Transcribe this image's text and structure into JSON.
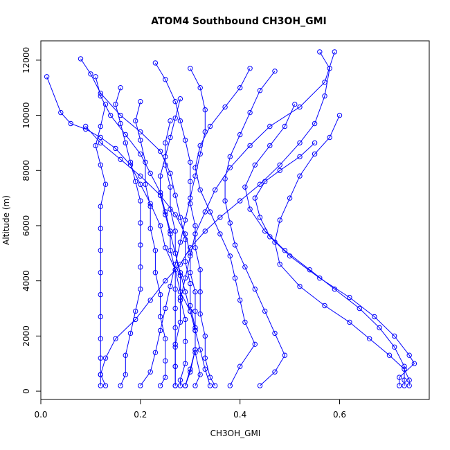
{
  "chart_data": {
    "type": "line",
    "title": "ATOM4 Southbound CH3OH_GMI",
    "xlabel": "CH3OH_GMI",
    "ylabel": "Altitude (m)",
    "xlim": [
      0,
      0.78
    ],
    "ylim": [
      -300,
      12700
    ],
    "x_ticks": [
      0.0,
      0.2,
      0.4,
      0.6
    ],
    "x_tick_labels": [
      "0.0",
      "0.2",
      "0.4",
      "0.6"
    ],
    "y_ticks": [
      0,
      2000,
      4000,
      6000,
      8000,
      10000,
      12000
    ],
    "y_tick_labels": [
      "0",
      "2000",
      "4000",
      "6000",
      "8000",
      "10000",
      "12000"
    ],
    "marker": "open-circle",
    "grid": false,
    "legend": "none",
    "colors": {
      "series": "#0000ff",
      "frame": "#000000"
    },
    "series": [
      {
        "points": [
          [
            0.012,
            11400
          ],
          [
            0.04,
            10100
          ],
          [
            0.06,
            9700
          ],
          [
            0.09,
            9500
          ],
          [
            0.12,
            9200
          ],
          [
            0.15,
            8800
          ],
          [
            0.18,
            8200
          ],
          [
            0.2,
            7500
          ],
          [
            0.22,
            6800
          ],
          [
            0.24,
            6000
          ],
          [
            0.25,
            5200
          ],
          [
            0.27,
            4400
          ],
          [
            0.28,
            3600
          ],
          [
            0.3,
            2900
          ],
          [
            0.31,
            2200
          ],
          [
            0.31,
            1400
          ],
          [
            0.32,
            600
          ],
          [
            0.31,
            200
          ]
        ]
      },
      {
        "points": [
          [
            0.08,
            12050
          ],
          [
            0.1,
            11500
          ],
          [
            0.12,
            10800
          ],
          [
            0.16,
            10000
          ],
          [
            0.2,
            9400
          ],
          [
            0.24,
            8700
          ],
          [
            0.26,
            7900
          ],
          [
            0.27,
            7100
          ],
          [
            0.28,
            6300
          ],
          [
            0.29,
            5500
          ],
          [
            0.29,
            4700
          ],
          [
            0.3,
            3900
          ],
          [
            0.3,
            3100
          ],
          [
            0.31,
            2300
          ],
          [
            0.31,
            1500
          ],
          [
            0.3,
            700
          ],
          [
            0.29,
            200
          ]
        ]
      },
      {
        "points": [
          [
            0.23,
            11900
          ],
          [
            0.25,
            11300
          ],
          [
            0.27,
            10500
          ],
          [
            0.28,
            9800
          ],
          [
            0.29,
            9100
          ],
          [
            0.3,
            8300
          ],
          [
            0.3,
            7600
          ],
          [
            0.3,
            6800
          ],
          [
            0.31,
            6000
          ],
          [
            0.31,
            5200
          ],
          [
            0.32,
            4400
          ],
          [
            0.32,
            3600
          ],
          [
            0.32,
            2800
          ],
          [
            0.33,
            2000
          ],
          [
            0.33,
            1200
          ],
          [
            0.34,
            500
          ],
          [
            0.35,
            200
          ]
        ]
      },
      {
        "points": [
          [
            0.56,
            12300
          ],
          [
            0.58,
            11700
          ],
          [
            0.57,
            10700
          ],
          [
            0.55,
            9700
          ],
          [
            0.52,
            9000
          ],
          [
            0.48,
            8200
          ],
          [
            0.44,
            7500
          ],
          [
            0.4,
            6900
          ],
          [
            0.36,
            6300
          ],
          [
            0.33,
            5800
          ],
          [
            0.3,
            5200
          ],
          [
            0.28,
            4600
          ],
          [
            0.25,
            4000
          ],
          [
            0.22,
            3300
          ],
          [
            0.19,
            2600
          ],
          [
            0.15,
            1900
          ],
          [
            0.13,
            1200
          ],
          [
            0.12,
            600
          ],
          [
            0.12,
            200
          ]
        ]
      },
      {
        "points": [
          [
            0.59,
            12300
          ],
          [
            0.57,
            11200
          ],
          [
            0.52,
            10300
          ],
          [
            0.46,
            9600
          ],
          [
            0.42,
            8900
          ],
          [
            0.38,
            8100
          ],
          [
            0.35,
            7300
          ],
          [
            0.33,
            6500
          ],
          [
            0.31,
            5700
          ],
          [
            0.3,
            4900
          ],
          [
            0.29,
            4100
          ],
          [
            0.28,
            3300
          ],
          [
            0.28,
            2500
          ],
          [
            0.27,
            1700
          ],
          [
            0.27,
            900
          ],
          [
            0.27,
            200
          ]
        ]
      },
      {
        "points": [
          [
            0.6,
            10000
          ],
          [
            0.58,
            9200
          ],
          [
            0.55,
            8600
          ],
          [
            0.52,
            7800
          ],
          [
            0.5,
            7000
          ],
          [
            0.48,
            6200
          ],
          [
            0.47,
            5400
          ],
          [
            0.48,
            4600
          ],
          [
            0.52,
            3800
          ],
          [
            0.57,
            3100
          ],
          [
            0.62,
            2500
          ],
          [
            0.66,
            1900
          ],
          [
            0.7,
            1300
          ],
          [
            0.73,
            800
          ],
          [
            0.74,
            400
          ],
          [
            0.74,
            200
          ]
        ]
      },
      {
        "points": [
          [
            0.51,
            10400
          ],
          [
            0.49,
            9600
          ],
          [
            0.46,
            8900
          ],
          [
            0.43,
            8200
          ],
          [
            0.41,
            7400
          ],
          [
            0.42,
            6600
          ],
          [
            0.45,
            5800
          ],
          [
            0.49,
            5100
          ],
          [
            0.54,
            4400
          ],
          [
            0.59,
            3700
          ],
          [
            0.64,
            3000
          ],
          [
            0.68,
            2300
          ],
          [
            0.71,
            1600
          ],
          [
            0.73,
            900
          ],
          [
            0.73,
            400
          ],
          [
            0.73,
            200
          ]
        ]
      },
      {
        "points": [
          [
            0.55,
            9000
          ],
          [
            0.52,
            8500
          ],
          [
            0.48,
            8000
          ],
          [
            0.45,
            7600
          ],
          [
            0.43,
            7000
          ],
          [
            0.44,
            6300
          ],
          [
            0.46,
            5600
          ],
          [
            0.5,
            4900
          ],
          [
            0.56,
            4100
          ],
          [
            0.62,
            3400
          ],
          [
            0.67,
            2700
          ],
          [
            0.71,
            2000
          ],
          [
            0.74,
            1300
          ],
          [
            0.75,
            1000
          ],
          [
            0.72,
            500
          ],
          [
            0.72,
            200
          ]
        ]
      },
      {
        "points": [
          [
            0.13,
            10400
          ],
          [
            0.12,
            9600
          ],
          [
            0.11,
            8900
          ],
          [
            0.12,
            8200
          ],
          [
            0.13,
            7500
          ],
          [
            0.12,
            6700
          ],
          [
            0.12,
            5900
          ],
          [
            0.12,
            5100
          ],
          [
            0.12,
            4300
          ],
          [
            0.12,
            3500
          ],
          [
            0.12,
            2700
          ],
          [
            0.12,
            1900
          ],
          [
            0.12,
            1200
          ],
          [
            0.12,
            600
          ],
          [
            0.13,
            200
          ]
        ]
      },
      {
        "points": [
          [
            0.2,
            10500
          ],
          [
            0.19,
            9800
          ],
          [
            0.2,
            9100
          ],
          [
            0.21,
            8300
          ],
          [
            0.21,
            7500
          ],
          [
            0.22,
            6700
          ],
          [
            0.22,
            5900
          ],
          [
            0.23,
            5100
          ],
          [
            0.23,
            4300
          ],
          [
            0.24,
            3500
          ],
          [
            0.24,
            2700
          ],
          [
            0.25,
            1900
          ],
          [
            0.25,
            1100
          ],
          [
            0.25,
            500
          ],
          [
            0.24,
            200
          ]
        ]
      },
      {
        "points": [
          [
            0.26,
            9800
          ],
          [
            0.25,
            9000
          ],
          [
            0.25,
            8200
          ],
          [
            0.26,
            7400
          ],
          [
            0.26,
            6600
          ],
          [
            0.27,
            5800
          ],
          [
            0.27,
            5000
          ],
          [
            0.28,
            4200
          ],
          [
            0.28,
            3400
          ],
          [
            0.29,
            2600
          ],
          [
            0.29,
            1800
          ],
          [
            0.29,
            1000
          ],
          [
            0.28,
            400
          ],
          [
            0.28,
            200
          ]
        ]
      },
      {
        "points": [
          [
            0.42,
            11700
          ],
          [
            0.4,
            11000
          ],
          [
            0.37,
            10300
          ],
          [
            0.34,
            9600
          ],
          [
            0.32,
            8900
          ],
          [
            0.31,
            8100
          ],
          [
            0.32,
            7300
          ],
          [
            0.34,
            6500
          ],
          [
            0.36,
            5700
          ],
          [
            0.38,
            4900
          ],
          [
            0.39,
            4100
          ],
          [
            0.4,
            3300
          ],
          [
            0.41,
            2500
          ],
          [
            0.43,
            1700
          ],
          [
            0.4,
            900
          ],
          [
            0.38,
            200
          ]
        ]
      },
      {
        "points": [
          [
            0.47,
            11600
          ],
          [
            0.44,
            10900
          ],
          [
            0.42,
            10100
          ],
          [
            0.4,
            9300
          ],
          [
            0.38,
            8500
          ],
          [
            0.37,
            7700
          ],
          [
            0.37,
            6900
          ],
          [
            0.38,
            6100
          ],
          [
            0.39,
            5300
          ],
          [
            0.41,
            4500
          ],
          [
            0.43,
            3700
          ],
          [
            0.45,
            2900
          ],
          [
            0.47,
            2100
          ],
          [
            0.49,
            1300
          ],
          [
            0.47,
            700
          ],
          [
            0.44,
            200
          ]
        ]
      },
      {
        "points": [
          [
            0.3,
            11700
          ],
          [
            0.32,
            11000
          ],
          [
            0.33,
            10200
          ],
          [
            0.33,
            9400
          ],
          [
            0.32,
            8600
          ],
          [
            0.31,
            7800
          ],
          [
            0.3,
            7000
          ],
          [
            0.29,
            6200
          ],
          [
            0.28,
            5400
          ],
          [
            0.27,
            4600
          ],
          [
            0.26,
            3800
          ],
          [
            0.25,
            3000
          ],
          [
            0.24,
            2200
          ],
          [
            0.23,
            1400
          ],
          [
            0.22,
            700
          ],
          [
            0.2,
            200
          ]
        ]
      },
      {
        "points": [
          [
            0.16,
            11000
          ],
          [
            0.15,
            10400
          ],
          [
            0.16,
            9700
          ],
          [
            0.17,
            9000
          ],
          [
            0.18,
            8300
          ],
          [
            0.19,
            7600
          ],
          [
            0.2,
            6900
          ],
          [
            0.2,
            6100
          ],
          [
            0.2,
            5300
          ],
          [
            0.2,
            4500
          ],
          [
            0.2,
            3700
          ],
          [
            0.19,
            2900
          ],
          [
            0.18,
            2100
          ],
          [
            0.17,
            1300
          ],
          [
            0.17,
            600
          ],
          [
            0.16,
            200
          ]
        ]
      },
      {
        "points": [
          [
            0.09,
            9600
          ],
          [
            0.12,
            9000
          ],
          [
            0.16,
            8400
          ],
          [
            0.2,
            7800
          ],
          [
            0.24,
            7100
          ],
          [
            0.27,
            6400
          ],
          [
            0.29,
            5700
          ],
          [
            0.3,
            5000
          ],
          [
            0.3,
            4300
          ],
          [
            0.31,
            3600
          ],
          [
            0.31,
            2900
          ],
          [
            0.31,
            2200
          ],
          [
            0.31,
            1500
          ],
          [
            0.3,
            800
          ],
          [
            0.29,
            200
          ]
        ]
      },
      {
        "points": [
          [
            0.28,
            10600
          ],
          [
            0.27,
            9900
          ],
          [
            0.26,
            9200
          ],
          [
            0.25,
            8500
          ],
          [
            0.24,
            7800
          ],
          [
            0.24,
            7100
          ],
          [
            0.25,
            6400
          ],
          [
            0.26,
            5700
          ],
          [
            0.27,
            5000
          ],
          [
            0.28,
            4300
          ],
          [
            0.29,
            3600
          ],
          [
            0.3,
            2900
          ],
          [
            0.31,
            2200
          ],
          [
            0.32,
            1500
          ],
          [
            0.33,
            800
          ],
          [
            0.34,
            200
          ]
        ]
      },
      {
        "points": [
          [
            0.11,
            11400
          ],
          [
            0.12,
            10700
          ],
          [
            0.14,
            10000
          ],
          [
            0.17,
            9300
          ],
          [
            0.2,
            8600
          ],
          [
            0.22,
            7900
          ],
          [
            0.24,
            7200
          ],
          [
            0.25,
            6500
          ],
          [
            0.26,
            5800
          ],
          [
            0.26,
            5100
          ],
          [
            0.27,
            4400
          ],
          [
            0.27,
            3700
          ],
          [
            0.27,
            3000
          ],
          [
            0.27,
            2300
          ],
          [
            0.27,
            1600
          ],
          [
            0.27,
            900
          ],
          [
            0.27,
            200
          ]
        ]
      }
    ]
  }
}
